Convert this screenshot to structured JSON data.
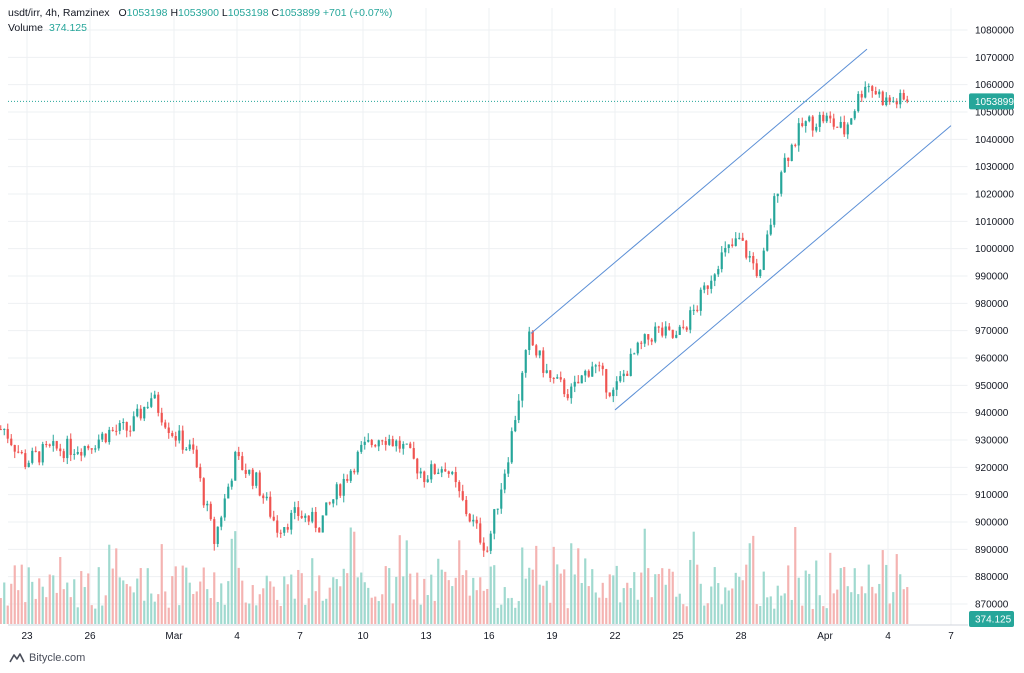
{
  "header": {
    "symbol": "usdt/irr, 4h, Ramzinex",
    "open_label": "O",
    "open": "1053198",
    "high_label": "H",
    "high": "1053900",
    "low_label": "L",
    "low": "1053198",
    "close_label": "C",
    "close": "1053899",
    "change": "+701 (+0.07%)",
    "volume_label": "Volume",
    "volume": "374.125"
  },
  "price_tag": "1053899",
  "volume_tag": "374.125",
  "footer": {
    "brand": "Bitycle.com"
  },
  "colors": {
    "up": "#26a69a",
    "down": "#ef5350",
    "channel": "#5b8fd6",
    "grid": "#eef0f3"
  },
  "chart_data": {
    "type": "candlestick",
    "title": "usdt/irr, 4h, Ramzinex",
    "ylim": [
      865000,
      1084000
    ],
    "y_ticks": [
      870000,
      880000,
      890000,
      900000,
      910000,
      920000,
      930000,
      940000,
      950000,
      960000,
      970000,
      980000,
      990000,
      1000000,
      1010000,
      1020000,
      1030000,
      1040000,
      1050000,
      1060000,
      1070000,
      1080000
    ],
    "x_ticks": [
      {
        "label": "23",
        "date": "2024-02-23"
      },
      {
        "label": "26",
        "date": "2024-02-26"
      },
      {
        "label": "Mar",
        "date": "2024-03-01"
      },
      {
        "label": "4",
        "date": "2024-03-04"
      },
      {
        "label": "7",
        "date": "2024-03-07"
      },
      {
        "label": "10",
        "date": "2024-03-10"
      },
      {
        "label": "13",
        "date": "2024-03-13"
      },
      {
        "label": "16",
        "date": "2024-03-16"
      },
      {
        "label": "19",
        "date": "2024-03-19"
      },
      {
        "label": "22",
        "date": "2024-03-22"
      },
      {
        "label": "25",
        "date": "2024-03-25"
      },
      {
        "label": "28",
        "date": "2024-03-28"
      },
      {
        "label": "Apr",
        "date": "2024-04-01"
      },
      {
        "label": "4",
        "date": "2024-04-04"
      },
      {
        "label": "7",
        "date": "2024-04-07"
      }
    ],
    "last_price": 1053899,
    "last_volume": 374.125,
    "channel": {
      "upper": [
        {
          "date": "2024-03-18",
          "price": 969000
        },
        {
          "date": "2024-04-03",
          "price": 1073000
        }
      ],
      "lower": [
        {
          "date": "2024-03-22",
          "price": 941000
        },
        {
          "date": "2024-04-07",
          "price": 1045000
        }
      ]
    },
    "price_path": [
      {
        "date": "2024-02-22",
        "price": 934000
      },
      {
        "date": "2024-02-23",
        "price": 922000
      },
      {
        "date": "2024-02-24",
        "price": 926000
      },
      {
        "date": "2024-02-25",
        "price": 927000
      },
      {
        "date": "2024-02-26",
        "price": 928000
      },
      {
        "date": "2024-02-27",
        "price": 933000
      },
      {
        "date": "2024-02-28",
        "price": 934000
      },
      {
        "date": "2024-02-29",
        "price": 946000
      },
      {
        "date": "2024-03-01",
        "price": 933000
      },
      {
        "date": "2024-03-02",
        "price": 925000
      },
      {
        "date": "2024-03-03",
        "price": 893000
      },
      {
        "date": "2024-03-04",
        "price": 923000
      },
      {
        "date": "2024-03-05",
        "price": 915000
      },
      {
        "date": "2024-03-06",
        "price": 898000
      },
      {
        "date": "2024-03-07",
        "price": 903000
      },
      {
        "date": "2024-03-08",
        "price": 899000
      },
      {
        "date": "2024-03-09",
        "price": 913000
      },
      {
        "date": "2024-03-10",
        "price": 926000
      },
      {
        "date": "2024-03-11",
        "price": 932000
      },
      {
        "date": "2024-03-12",
        "price": 927000
      },
      {
        "date": "2024-03-13",
        "price": 917000
      },
      {
        "date": "2024-03-14",
        "price": 921000
      },
      {
        "date": "2024-03-15",
        "price": 904000
      },
      {
        "date": "2024-03-16",
        "price": 890000
      },
      {
        "date": "2024-03-17",
        "price": 925000
      },
      {
        "date": "2024-03-18",
        "price": 967000
      },
      {
        "date": "2024-03-19",
        "price": 952000
      },
      {
        "date": "2024-03-20",
        "price": 947000
      },
      {
        "date": "2024-03-21",
        "price": 958000
      },
      {
        "date": "2024-03-22",
        "price": 947000
      },
      {
        "date": "2024-03-23",
        "price": 961000
      },
      {
        "date": "2024-03-24",
        "price": 970000
      },
      {
        "date": "2024-03-25",
        "price": 967000
      },
      {
        "date": "2024-03-26",
        "price": 979000
      },
      {
        "date": "2024-03-27",
        "price": 996000
      },
      {
        "date": "2024-03-28",
        "price": 1003000
      },
      {
        "date": "2024-03-29",
        "price": 990000
      },
      {
        "date": "2024-03-30",
        "price": 1030000
      },
      {
        "date": "2024-03-31",
        "price": 1045000
      },
      {
        "date": "2024-04-01",
        "price": 1048000
      },
      {
        "date": "2024-04-02",
        "price": 1043000
      },
      {
        "date": "2024-04-03",
        "price": 1061000
      },
      {
        "date": "2024-04-04",
        "price": 1053899
      }
    ]
  }
}
